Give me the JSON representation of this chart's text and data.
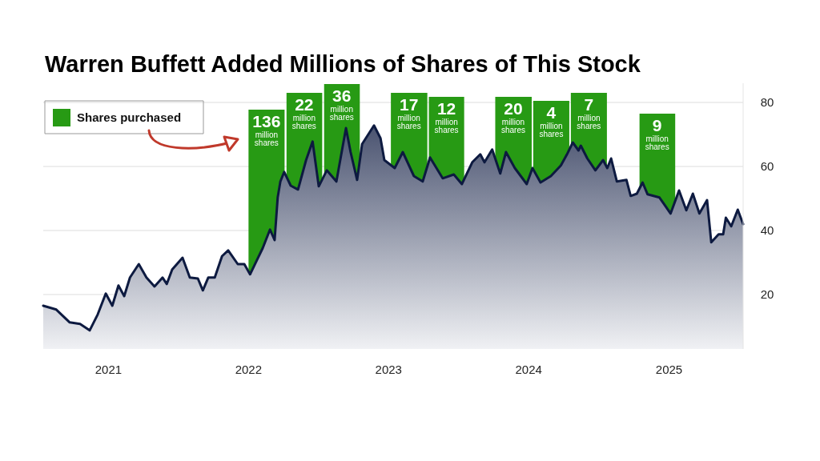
{
  "chart_data": {
    "type": "area",
    "title": "Warren Buffett Added Millions of Shares of This Stock",
    "x": [
      "2020-07-15",
      "2020-08-18",
      "2020-09-22",
      "2020-10-19",
      "2020-11-13",
      "2020-12-04",
      "2020-12-25",
      "2021-01-11",
      "2021-01-27",
      "2021-02-11",
      "2021-02-26",
      "2021-03-21",
      "2021-04-10",
      "2021-05-01",
      "2021-05-22",
      "2021-06-02",
      "2021-06-16",
      "2021-07-13",
      "2021-08-01",
      "2021-08-22",
      "2021-09-04",
      "2021-09-18",
      "2021-10-05",
      "2021-10-24",
      "2021-11-09",
      "2021-12-04",
      "2021-12-21",
      "2022-01-05",
      "2022-01-21",
      "2022-02-07",
      "2022-02-26",
      "2022-03-10",
      "2022-03-18",
      "2022-03-25",
      "2022-04-04",
      "2022-04-21",
      "2022-05-10",
      "2022-05-31",
      "2022-06-17",
      "2022-07-03",
      "2022-07-24",
      "2022-08-18",
      "2022-09-12",
      "2022-09-24",
      "2022-10-11",
      "2022-10-24",
      "2022-11-24",
      "2022-12-11",
      "2022-12-21",
      "2023-01-17",
      "2023-02-07",
      "2023-03-08",
      "2023-03-31",
      "2023-04-19",
      "2023-05-22",
      "2023-06-20",
      "2023-07-11",
      "2023-08-07",
      "2023-08-28",
      "2023-09-08",
      "2023-09-28",
      "2023-10-19",
      "2023-11-03",
      "2023-11-26",
      "2023-12-27",
      "2024-01-11",
      "2024-02-01",
      "2024-02-28",
      "2024-03-25",
      "2024-04-10",
      "2024-04-25",
      "2024-05-10",
      "2024-05-16",
      "2024-06-02",
      "2024-06-23",
      "2024-07-13",
      "2024-07-24",
      "2024-08-03",
      "2024-08-18",
      "2024-09-12",
      "2024-09-23",
      "2024-10-09",
      "2024-10-24",
      "2024-11-06",
      "2024-12-07",
      "2025-01-05",
      "2025-01-27",
      "2025-02-15",
      "2025-03-04",
      "2025-03-21",
      "2025-04-10",
      "2025-04-21",
      "2025-05-10",
      "2025-05-22",
      "2025-05-29",
      "2025-06-12",
      "2025-06-29",
      "2025-07-13"
    ],
    "series": [
      {
        "color": "#0d1a40",
        "values": [
          16.5,
          15.3,
          11.3,
          10.8,
          8.8,
          13.8,
          20.3,
          16.5,
          22.8,
          19.5,
          25.3,
          29.5,
          25.3,
          22.5,
          25.3,
          23.3,
          27.8,
          31.5,
          25.3,
          25,
          21.3,
          25.3,
          25.3,
          32,
          33.8,
          29.5,
          29.5,
          26.3,
          30.3,
          34.5,
          40.3,
          37,
          50.3,
          55.3,
          58.3,
          54,
          52.8,
          62,
          67.8,
          53.8,
          58.8,
          55.3,
          72,
          64.5,
          55.8,
          67,
          72.8,
          68.8,
          62,
          59.5,
          64.5,
          57,
          55.3,
          62.8,
          56.3,
          57.5,
          54.5,
          61.3,
          63.8,
          61.3,
          65.3,
          57.8,
          64.5,
          59.5,
          54.5,
          59.5,
          55,
          57,
          60.3,
          63.8,
          67.5,
          65,
          66.5,
          62.5,
          58.8,
          62,
          59.5,
          62.5,
          55.3,
          55.8,
          50.8,
          51.5,
          55,
          51.3,
          50.3,
          45.3,
          52.5,
          46.3,
          51.5,
          45.3,
          49.5,
          36.3,
          38.8,
          38.8,
          44,
          41.3,
          46.5,
          42
        ]
      }
    ],
    "xlim": [
      "2020-07-15",
      "2025-07-13"
    ],
    "xticks": [
      "2021",
      "2022",
      "2023",
      "2024",
      "2025"
    ],
    "ylim": [
      3,
      86
    ],
    "yticks": [
      20,
      40,
      60,
      80
    ],
    "grid": "y",
    "legend_title": "Shares purchased",
    "bands": [
      {
        "axis": "x",
        "from": "2022-01-01",
        "to": "2022-04-05",
        "color": "#279a14"
      },
      {
        "axis": "x",
        "from": "2022-04-10",
        "to": "2022-07-12",
        "color": "#279a14"
      },
      {
        "axis": "x",
        "from": "2022-07-17",
        "to": "2022-10-18",
        "color": "#279a14"
      },
      {
        "axis": "x",
        "from": "2023-01-07",
        "to": "2023-04-12",
        "color": "#279a14"
      },
      {
        "axis": "x",
        "from": "2023-04-16",
        "to": "2023-07-17",
        "color": "#279a14"
      },
      {
        "axis": "x",
        "from": "2023-10-06",
        "to": "2024-01-09",
        "color": "#279a14"
      },
      {
        "axis": "x",
        "from": "2024-01-13",
        "to": "2024-04-16",
        "color": "#279a14"
      },
      {
        "axis": "x",
        "from": "2024-04-20",
        "to": "2024-07-23",
        "color": "#279a14"
      },
      {
        "axis": "x",
        "from": "2024-10-16",
        "to": "2025-01-17",
        "color": "#279a14"
      }
    ],
    "annotations": [
      {
        "text": "136 million shares",
        "x": "2022-02-17",
        "y": 77.75
      },
      {
        "text": "22 million shares",
        "x": "2022-05-26",
        "y": 83
      },
      {
        "text": "36 million shares",
        "x": "2022-09-01",
        "y": 85.75
      },
      {
        "text": "17 million shares",
        "x": "2023-02-23",
        "y": 83
      },
      {
        "text": "12 million shares",
        "x": "2023-06-01",
        "y": 81.75
      },
      {
        "text": "20 million shares",
        "x": "2023-11-22",
        "y": 81.75
      },
      {
        "text": "4 million shares",
        "x": "2024-02-29",
        "y": 80.5
      },
      {
        "text": "7 million shares",
        "x": "2024-06-06",
        "y": 83
      },
      {
        "text": "9 million shares",
        "x": "2024-12-01",
        "y": 76.5
      }
    ]
  }
}
